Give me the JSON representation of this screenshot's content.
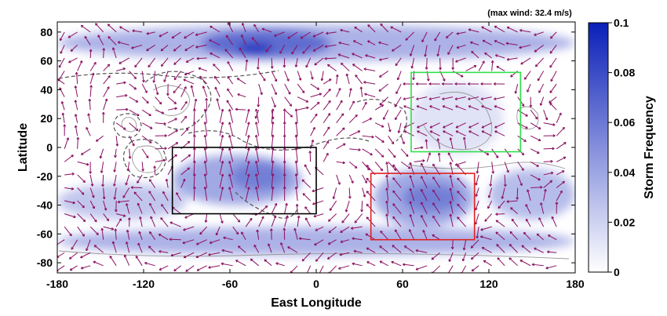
{
  "chart_data": {
    "type": "heatmap",
    "annotation": "(max wind: 32.4 m/s)",
    "xlabel": "East Longitude",
    "ylabel": "Latitude",
    "xlim": [
      -180,
      180
    ],
    "ylim": [
      -87,
      87
    ],
    "x_ticks": [
      -180,
      -120,
      -60,
      0,
      60,
      120,
      180
    ],
    "y_ticks": [
      -80,
      -60,
      -40,
      -20,
      0,
      20,
      40,
      60,
      80
    ],
    "colorbar": {
      "label": "Storm Frequency",
      "range": [
        0,
        0.1
      ],
      "ticks": [
        0,
        0.02,
        0.04,
        0.06,
        0.08,
        0.1
      ],
      "tick_labels": [
        "0",
        "0.02",
        "0.04",
        "0.06",
        "0.08",
        "0.1"
      ],
      "color_low": "#ffffff",
      "color_high": "#0a1fb8"
    },
    "frequency_bands": [
      {
        "lon": [
          -180,
          180
        ],
        "lat": [
          60,
          85
        ],
        "value": 0.04
      },
      {
        "lon": [
          -80,
          10
        ],
        "lat": [
          62,
          82
        ],
        "value": 0.07
      },
      {
        "lon": [
          -55,
          -30
        ],
        "lat": [
          65,
          72
        ],
        "value": 0.1
      },
      {
        "lon": [
          -180,
          180
        ],
        "lat": [
          -75,
          -55
        ],
        "value": 0.04
      },
      {
        "lon": [
          -180,
          -90
        ],
        "lat": [
          -50,
          -25
        ],
        "value": 0.03
      },
      {
        "lon": [
          -100,
          -10
        ],
        "lat": [
          -40,
          -5
        ],
        "value": 0.045
      },
      {
        "lon": [
          -60,
          -20
        ],
        "lat": [
          -30,
          -10
        ],
        "value": 0.06
      },
      {
        "lon": [
          40,
          110
        ],
        "lat": [
          -55,
          -15
        ],
        "value": 0.045
      },
      {
        "lon": [
          60,
          100
        ],
        "lat": [
          -45,
          -25
        ],
        "value": 0.06
      },
      {
        "lon": [
          120,
          180
        ],
        "lat": [
          -50,
          -15
        ],
        "value": 0.035
      },
      {
        "lon": [
          65,
          130
        ],
        "lat": [
          -5,
          45
        ],
        "value": 0.015
      }
    ],
    "boxes": [
      {
        "color": "#000000",
        "lon": [
          -100,
          0
        ],
        "lat": [
          -46,
          0
        ]
      },
      {
        "color": "#e02020",
        "lon": [
          38,
          110
        ],
        "lat": [
          -64,
          -18
        ]
      },
      {
        "color": "#2ee04a",
        "lon": [
          66,
          142
        ],
        "lat": [
          -3,
          52
        ]
      }
    ],
    "vector_color": "#8a1060",
    "max_wind": 32.4
  }
}
